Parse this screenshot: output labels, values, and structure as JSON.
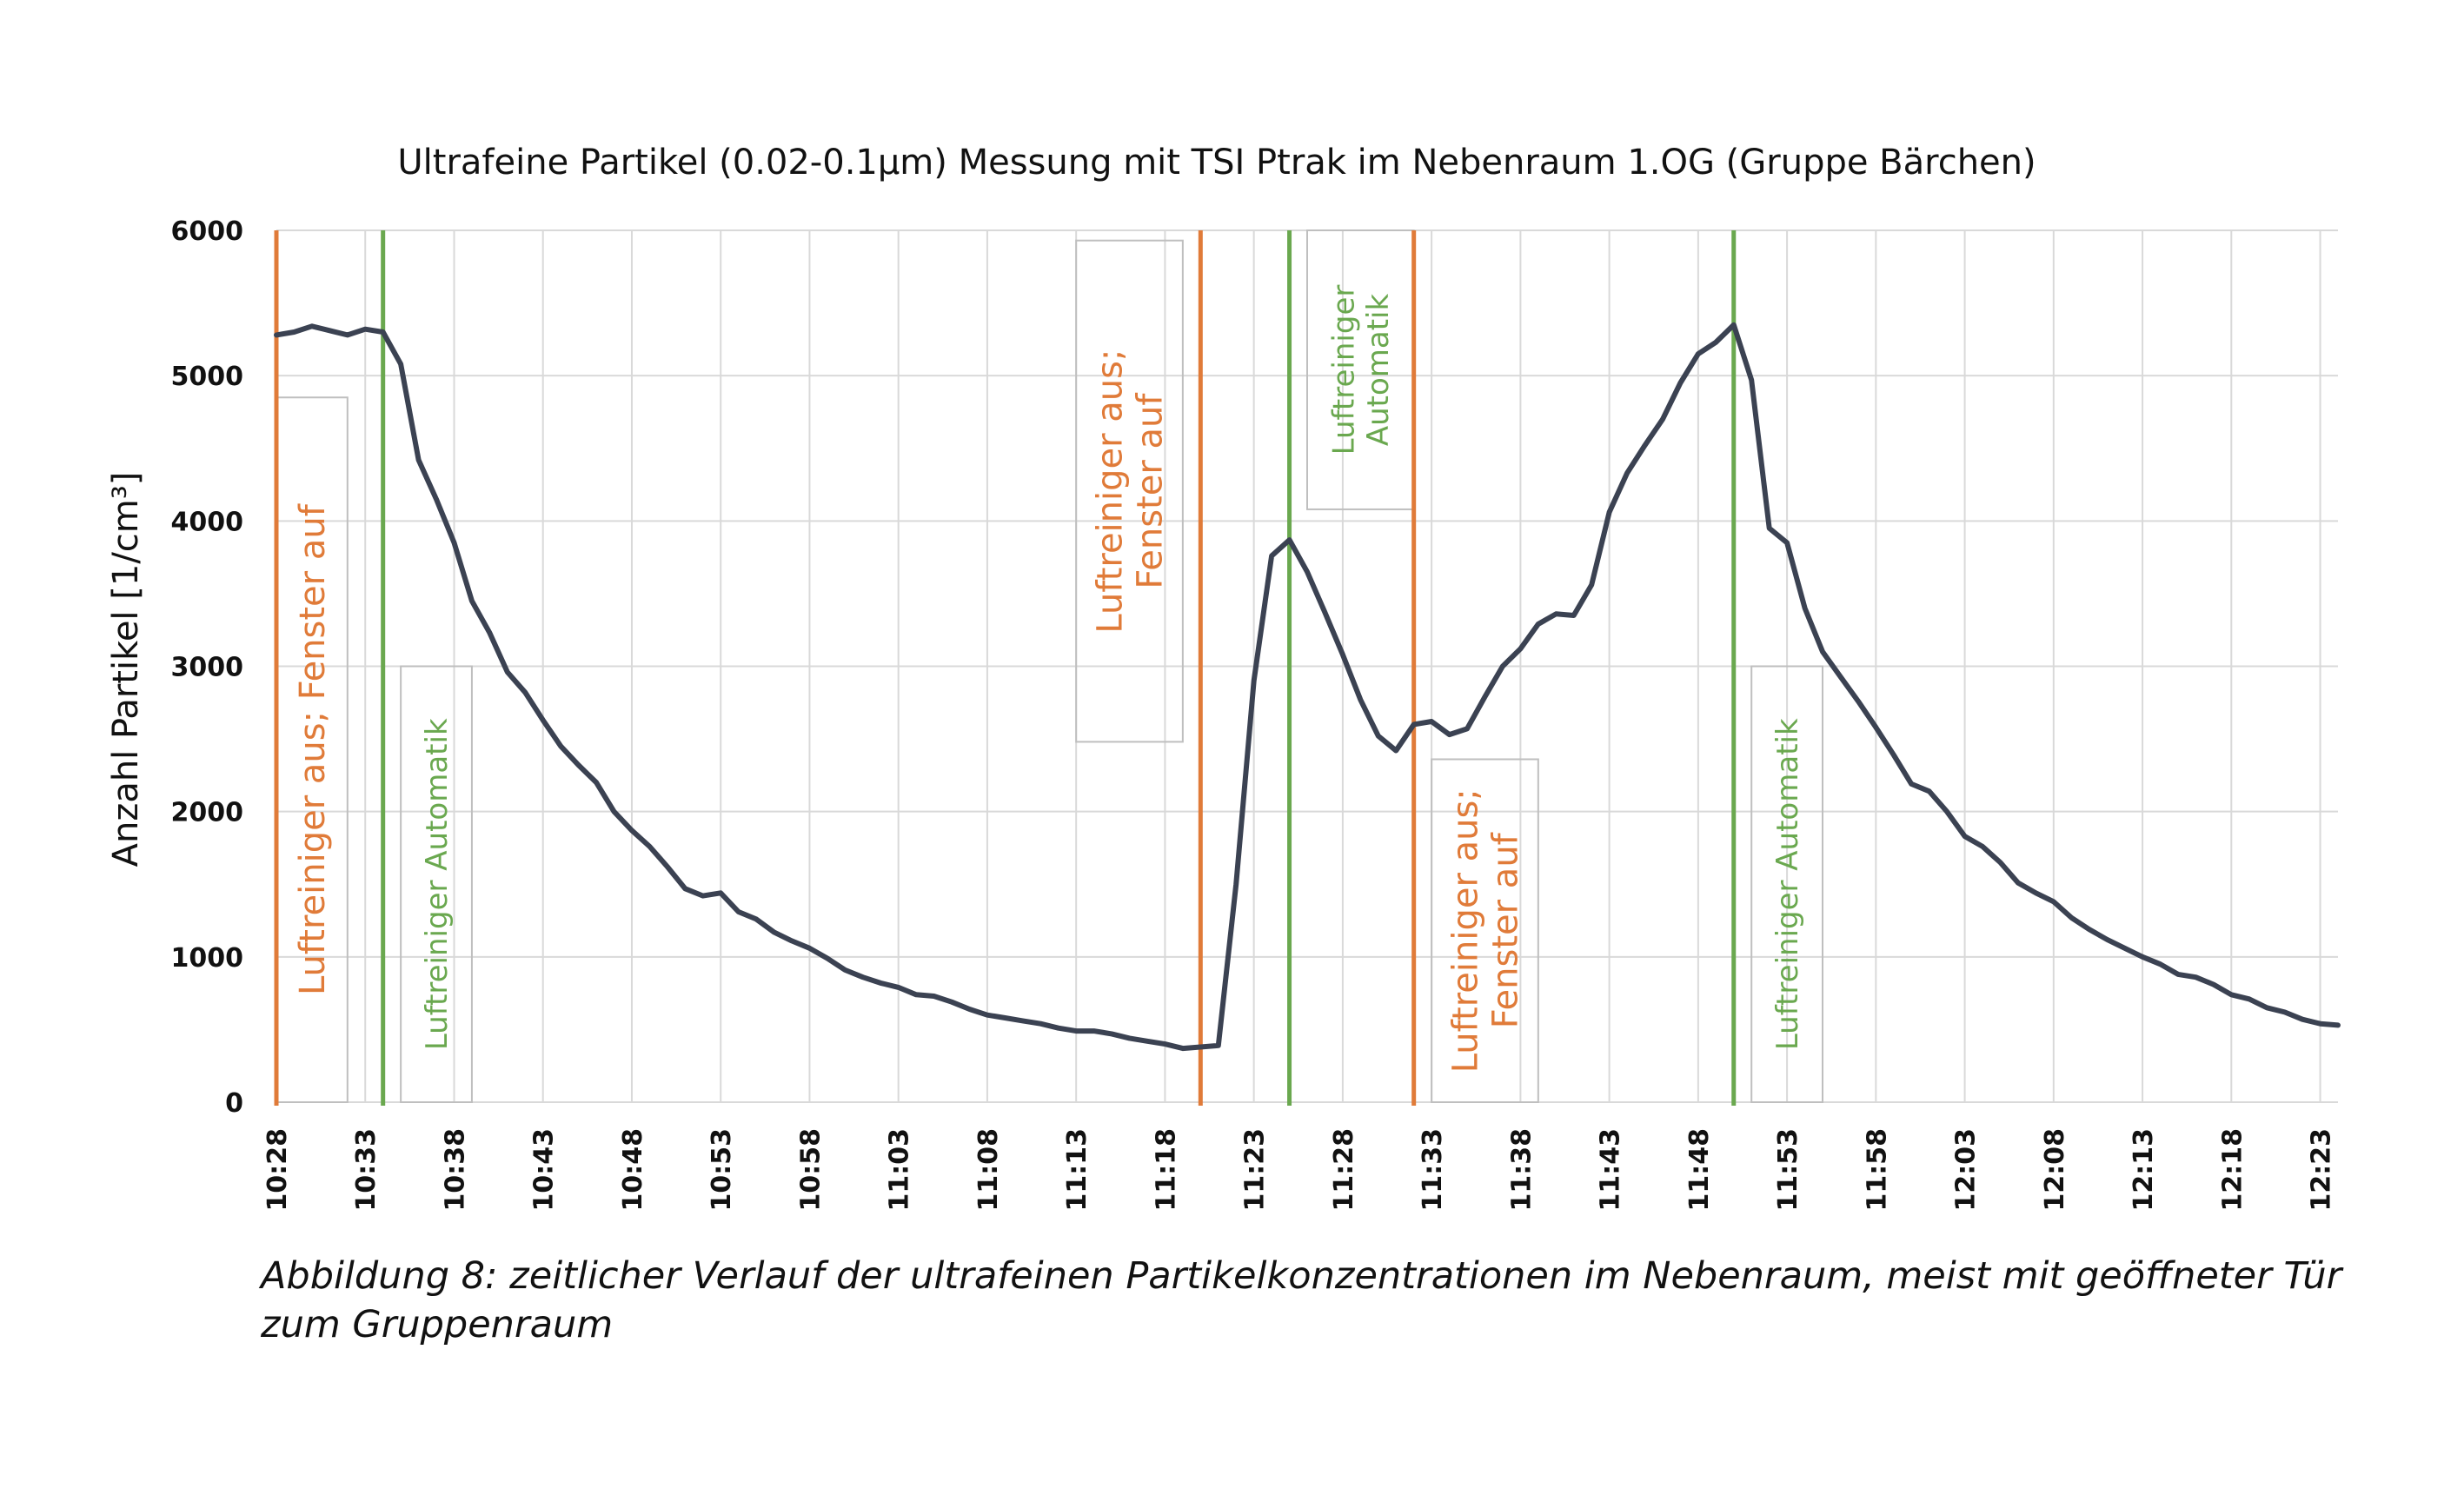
{
  "chart_data": {
    "type": "line",
    "title": "Ultrafeine Partikel (0.02-0.1µm) Messung mit TSI Ptrak im Nebenraum 1.OG (Gruppe Bärchen)",
    "ylabel": "Anzahl Partikel [1/cm³]",
    "xlabel": "",
    "ylim": [
      0,
      6000
    ],
    "yticks": [
      0,
      1000,
      2000,
      3000,
      4000,
      5000,
      6000
    ],
    "xlim": [
      "10:28",
      "12:24"
    ],
    "xticks": [
      "10:28",
      "10:33",
      "10:38",
      "10:43",
      "10:48",
      "10:53",
      "10:58",
      "11:03",
      "11:08",
      "11:13",
      "11:18",
      "11:23",
      "11:28",
      "11:33",
      "11:38",
      "11:43",
      "11:48",
      "11:53",
      "11:58",
      "12:03",
      "12:08",
      "12:13",
      "12:18",
      "12:23"
    ],
    "grid": true,
    "line_color": "#3b4252",
    "series": [
      {
        "name": "",
        "points": [
          [
            "10:28",
            5280
          ],
          [
            "10:29",
            5300
          ],
          [
            "10:30",
            5340
          ],
          [
            "10:31",
            5310
          ],
          [
            "10:32",
            5280
          ],
          [
            "10:33",
            5320
          ],
          [
            "10:34",
            5300
          ],
          [
            "10:35",
            5080
          ],
          [
            "10:36",
            4420
          ],
          [
            "10:37",
            4150
          ],
          [
            "10:38",
            3850
          ],
          [
            "10:39",
            3450
          ],
          [
            "10:40",
            3230
          ],
          [
            "10:41",
            2960
          ],
          [
            "10:42",
            2820
          ],
          [
            "10:43",
            2630
          ],
          [
            "10:44",
            2450
          ],
          [
            "10:45",
            2320
          ],
          [
            "10:46",
            2200
          ],
          [
            "10:47",
            2000
          ],
          [
            "10:48",
            1870
          ],
          [
            "10:49",
            1760
          ],
          [
            "10:50",
            1620
          ],
          [
            "10:51",
            1470
          ],
          [
            "10:52",
            1420
          ],
          [
            "10:53",
            1440
          ],
          [
            "10:54",
            1310
          ],
          [
            "10:55",
            1260
          ],
          [
            "10:56",
            1170
          ],
          [
            "10:57",
            1110
          ],
          [
            "10:58",
            1060
          ],
          [
            "10:59",
            990
          ],
          [
            "11:00",
            910
          ],
          [
            "11:01",
            860
          ],
          [
            "11:02",
            820
          ],
          [
            "11:03",
            790
          ],
          [
            "11:04",
            740
          ],
          [
            "11:05",
            730
          ],
          [
            "11:06",
            690
          ],
          [
            "11:07",
            640
          ],
          [
            "11:08",
            600
          ],
          [
            "11:09",
            580
          ],
          [
            "11:10",
            560
          ],
          [
            "11:11",
            540
          ],
          [
            "11:12",
            510
          ],
          [
            "11:13",
            490
          ],
          [
            "11:14",
            490
          ],
          [
            "11:15",
            470
          ],
          [
            "11:16",
            440
          ],
          [
            "11:17",
            420
          ],
          [
            "11:18",
            400
          ],
          [
            "11:19",
            370
          ],
          [
            "11:20",
            380
          ],
          [
            "11:21",
            390
          ],
          [
            "11:22",
            1500
          ],
          [
            "11:23",
            2900
          ],
          [
            "11:24",
            3760
          ],
          [
            "11:25",
            3870
          ],
          [
            "11:26",
            3650
          ],
          [
            "11:27",
            3370
          ],
          [
            "11:28",
            3080
          ],
          [
            "11:29",
            2770
          ],
          [
            "11:30",
            2520
          ],
          [
            "11:31",
            2420
          ],
          [
            "11:32",
            2600
          ],
          [
            "11:33",
            2620
          ],
          [
            "11:34",
            2530
          ],
          [
            "11:35",
            2570
          ],
          [
            "11:36",
            2790
          ],
          [
            "11:37",
            3000
          ],
          [
            "11:38",
            3120
          ],
          [
            "11:39",
            3290
          ],
          [
            "11:40",
            3360
          ],
          [
            "11:41",
            3350
          ],
          [
            "11:42",
            3560
          ],
          [
            "11:43",
            4060
          ],
          [
            "11:44",
            4330
          ],
          [
            "11:45",
            4520
          ],
          [
            "11:46",
            4700
          ],
          [
            "11:47",
            4950
          ],
          [
            "11:48",
            5150
          ],
          [
            "11:49",
            5230
          ],
          [
            "11:50",
            5350
          ],
          [
            "11:51",
            4970
          ],
          [
            "11:52",
            3950
          ],
          [
            "11:53",
            3850
          ],
          [
            "11:54",
            3400
          ],
          [
            "11:55",
            3100
          ],
          [
            "11:56",
            2930
          ],
          [
            "11:57",
            2760
          ],
          [
            "11:58",
            2580
          ],
          [
            "11:59",
            2390
          ],
          [
            "12:00",
            2190
          ],
          [
            "12:01",
            2140
          ],
          [
            "12:02",
            2000
          ],
          [
            "12:03",
            1830
          ],
          [
            "12:04",
            1760
          ],
          [
            "12:05",
            1650
          ],
          [
            "12:06",
            1510
          ],
          [
            "12:07",
            1440
          ],
          [
            "12:08",
            1380
          ],
          [
            "12:09",
            1270
          ],
          [
            "12:10",
            1190
          ],
          [
            "12:11",
            1120
          ],
          [
            "12:12",
            1060
          ],
          [
            "12:13",
            1000
          ],
          [
            "12:14",
            950
          ],
          [
            "12:15",
            880
          ],
          [
            "12:16",
            860
          ],
          [
            "12:17",
            810
          ],
          [
            "12:18",
            740
          ],
          [
            "12:19",
            710
          ],
          [
            "12:20",
            650
          ],
          [
            "12:21",
            620
          ],
          [
            "12:22",
            570
          ],
          [
            "12:23",
            540
          ],
          [
            "12:24",
            530
          ]
        ]
      }
    ],
    "events": [
      {
        "time": "10:28",
        "kind": "off",
        "color": "#e07b39"
      },
      {
        "time": "10:34",
        "kind": "auto",
        "color": "#6aa84f"
      },
      {
        "time": "11:20",
        "kind": "off",
        "color": "#e07b39"
      },
      {
        "time": "11:25",
        "kind": "auto",
        "color": "#6aa84f"
      },
      {
        "time": "11:32",
        "kind": "off",
        "color": "#e07b39"
      },
      {
        "time": "11:50",
        "kind": "auto",
        "color": "#6aa84f"
      }
    ],
    "annotations": [
      {
        "lines": [
          "Luftreiniger aus; Fenster auf"
        ],
        "color": "#e07b39",
        "time_from": "10:28",
        "time_to": "10:32",
        "y_top": 4850,
        "y_bottom": 0,
        "boxed": true
      },
      {
        "lines": [
          "Luftreiniger Automatik"
        ],
        "color": "#6aa84f",
        "time_from": "10:35",
        "time_to": "10:39",
        "y_top": 3000,
        "y_bottom": 0,
        "boxed": true
      },
      {
        "lines": [
          "Luftreiniger aus;",
          "Fenster auf"
        ],
        "color": "#e07b39",
        "time_from": "11:13",
        "time_to": "11:19",
        "y_top": 5930,
        "y_bottom": 2480,
        "boxed": true
      },
      {
        "lines": [
          "Luftreiniger",
          "Automatik"
        ],
        "color": "#6aa84f",
        "time_from": "11:26",
        "time_to": "11:32",
        "y_top": 6000,
        "y_bottom": 4080,
        "boxed": true
      },
      {
        "lines": [
          "Luftreiniger aus;",
          "Fenster auf"
        ],
        "color": "#e07b39",
        "time_from": "11:33",
        "time_to": "11:39",
        "y_top": 2360,
        "y_bottom": 0,
        "boxed": true
      },
      {
        "lines": [
          "Luftreiniger Automatik"
        ],
        "color": "#6aa84f",
        "time_from": "11:51",
        "time_to": "11:55",
        "y_top": 3000,
        "y_bottom": 0,
        "boxed": true
      }
    ]
  },
  "caption": {
    "text": "Abbildung 8: zeitlicher Verlauf der ultrafeinen Partikelkonzentrationen im Nebenraum, meist mit geöffneter Tür zum Gruppenraum"
  }
}
